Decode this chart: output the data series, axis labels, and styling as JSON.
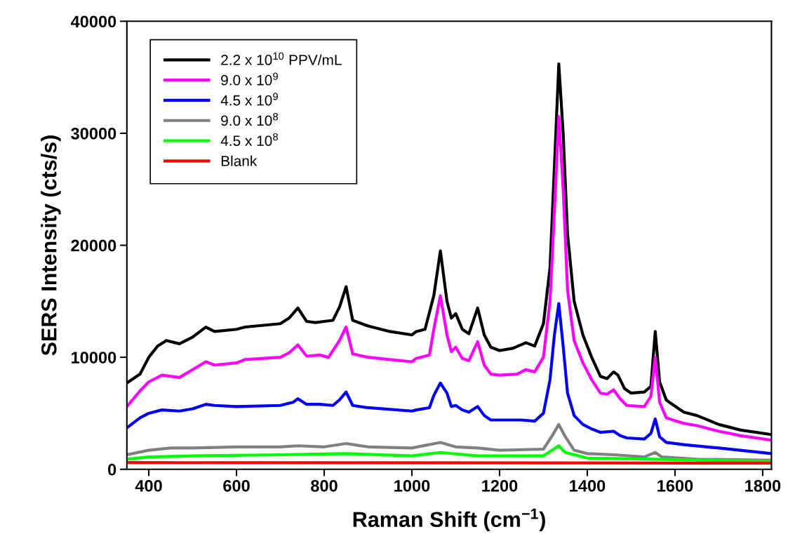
{
  "chart_data": {
    "type": "line",
    "xlabel": "Raman Shift (cm$^{−1}$)",
    "ylabel": "SERS Intensity (cts/s)",
    "xlim": [
      350,
      1820
    ],
    "xticks": [
      400,
      600,
      800,
      1000,
      1200,
      1400,
      1600,
      1800
    ],
    "ylim": [
      0,
      40000
    ],
    "yticks": [
      0,
      10000,
      20000,
      30000,
      40000
    ],
    "grid": false,
    "legend": "top left",
    "marker": "none",
    "line_style": "solid",
    "series": [
      {
        "name": "2.2 x 10$^{10}$ PPV/mL",
        "color": "#000000",
        "x": [
          350,
          380,
          400,
          420,
          440,
          470,
          500,
          530,
          550,
          600,
          620,
          700,
          720,
          740,
          760,
          780,
          800,
          820,
          835,
          850,
          865,
          900,
          950,
          1000,
          1010,
          1030,
          1050,
          1065,
          1080,
          1090,
          1100,
          1115,
          1130,
          1150,
          1165,
          1180,
          1200,
          1230,
          1260,
          1280,
          1300,
          1315,
          1325,
          1335,
          1345,
          1355,
          1370,
          1390,
          1410,
          1430,
          1445,
          1460,
          1470,
          1485,
          1500,
          1530,
          1545,
          1555,
          1565,
          1580,
          1590,
          1620,
          1650,
          1700,
          1750,
          1820
        ],
        "values": [
          7700,
          8500,
          10000,
          11000,
          11500,
          11200,
          11800,
          12700,
          12300,
          12500,
          12700,
          13000,
          13500,
          14400,
          13200,
          13100,
          13200,
          13300,
          14500,
          16300,
          13300,
          12800,
          12300,
          12000,
          12300,
          12500,
          15500,
          19500,
          15000,
          13500,
          13900,
          12500,
          12100,
          14400,
          12000,
          10900,
          10600,
          10800,
          11300,
          11000,
          13000,
          18000,
          27000,
          36200,
          30000,
          21000,
          15000,
          12000,
          10000,
          8300,
          8100,
          8700,
          8400,
          7200,
          6800,
          6900,
          7400,
          12300,
          7800,
          6200,
          5900,
          5100,
          4800,
          4000,
          3500,
          3100
        ]
      },
      {
        "name": "9.0 x 10$^{9}$",
        "color": "#ff00ff",
        "x": [
          350,
          380,
          400,
          430,
          470,
          500,
          530,
          550,
          600,
          620,
          700,
          720,
          740,
          760,
          790,
          810,
          835,
          850,
          865,
          900,
          950,
          1000,
          1010,
          1040,
          1050,
          1065,
          1080,
          1090,
          1100,
          1115,
          1130,
          1150,
          1165,
          1180,
          1200,
          1240,
          1260,
          1280,
          1300,
          1315,
          1325,
          1335,
          1345,
          1355,
          1370,
          1390,
          1410,
          1430,
          1445,
          1460,
          1475,
          1490,
          1530,
          1545,
          1555,
          1565,
          1580,
          1595,
          1620,
          1650,
          1700,
          1750,
          1820
        ],
        "values": [
          5600,
          7000,
          7800,
          8400,
          8200,
          8900,
          9600,
          9300,
          9500,
          9800,
          10000,
          10400,
          11100,
          10100,
          10200,
          10000,
          11500,
          12700,
          10300,
          10000,
          9800,
          9600,
          9900,
          10200,
          12500,
          15500,
          12000,
          10500,
          10900,
          9900,
          9700,
          11400,
          9300,
          8500,
          8400,
          8500,
          8900,
          8700,
          10000,
          15000,
          23000,
          31500,
          25000,
          16000,
          11500,
          9500,
          8000,
          6800,
          6700,
          7100,
          6300,
          5700,
          5600,
          6500,
          10000,
          6000,
          4600,
          4400,
          4100,
          3900,
          3400,
          3000,
          2600
        ]
      },
      {
        "name": "4.5 x 10$^{9}$",
        "color": "#0000ff",
        "x": [
          350,
          380,
          400,
          430,
          470,
          500,
          530,
          550,
          600,
          700,
          730,
          740,
          760,
          790,
          820,
          835,
          850,
          865,
          900,
          1000,
          1010,
          1040,
          1050,
          1065,
          1080,
          1090,
          1100,
          1115,
          1130,
          1150,
          1165,
          1180,
          1200,
          1250,
          1280,
          1300,
          1315,
          1325,
          1335,
          1345,
          1355,
          1370,
          1390,
          1410,
          1430,
          1460,
          1475,
          1490,
          1530,
          1545,
          1555,
          1565,
          1580,
          1620,
          1700,
          1820
        ],
        "values": [
          3700,
          4600,
          5000,
          5300,
          5200,
          5400,
          5800,
          5700,
          5600,
          5700,
          6000,
          6300,
          5800,
          5800,
          5700,
          6200,
          6900,
          5700,
          5500,
          5200,
          5300,
          5500,
          6600,
          7700,
          6800,
          5600,
          5700,
          5300,
          5100,
          5600,
          4800,
          4400,
          4400,
          4400,
          4300,
          5000,
          8000,
          12000,
          14800,
          11000,
          6800,
          4800,
          4000,
          3600,
          3300,
          3400,
          3000,
          2800,
          2700,
          3200,
          4500,
          2900,
          2400,
          2200,
          1900,
          1400
        ]
      },
      {
        "name": "9.0 x 10$^{8}$",
        "color": "#808080",
        "x": [
          350,
          400,
          450,
          500,
          600,
          700,
          740,
          800,
          850,
          900,
          1000,
          1065,
          1100,
          1150,
          1200,
          1300,
          1320,
          1335,
          1350,
          1370,
          1400,
          1460,
          1530,
          1555,
          1570,
          1650,
          1820
        ],
        "values": [
          1300,
          1700,
          1900,
          1900,
          2000,
          2000,
          2100,
          2000,
          2300,
          2000,
          1900,
          2400,
          2000,
          1900,
          1700,
          1800,
          3000,
          4000,
          2900,
          1700,
          1400,
          1300,
          1100,
          1500,
          1100,
          900,
          800
        ]
      },
      {
        "name": "4.5 x 10$^{8}$",
        "color": "#00ff00",
        "x": [
          350,
          400,
          500,
          700,
          850,
          1000,
          1065,
          1150,
          1300,
          1320,
          1335,
          1350,
          1400,
          1555,
          1820
        ],
        "values": [
          900,
          1100,
          1200,
          1300,
          1400,
          1200,
          1500,
          1200,
          1200,
          1700,
          2100,
          1500,
          1000,
          900,
          700
        ]
      },
      {
        "name": "Blank",
        "color": "#ff0000",
        "x": [
          350,
          1820
        ],
        "values": [
          600,
          550
        ]
      }
    ]
  }
}
